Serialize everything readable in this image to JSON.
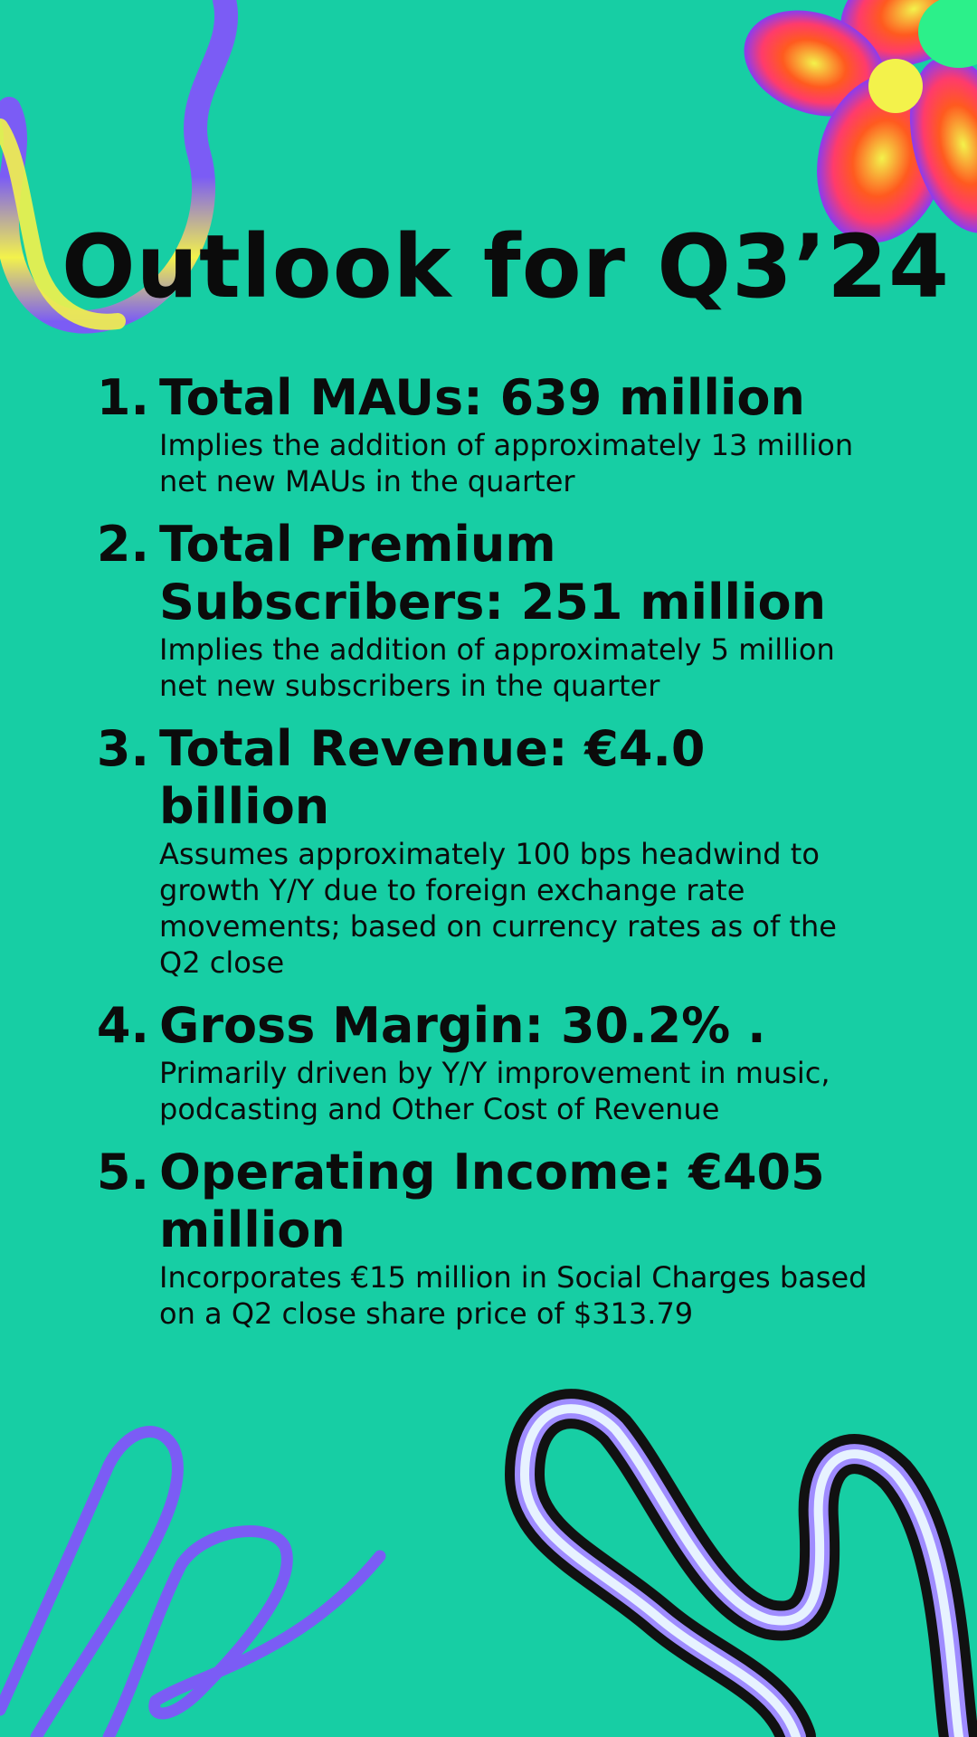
{
  "title": "Outlook for Q3’24",
  "items": [
    {
      "number": "1.",
      "heading": "Total MAUs: 639 million",
      "detail": "Implies the addition of approximately 13 million net new MAUs in the quarter"
    },
    {
      "number": "2.",
      "heading": "Total Premium Subscribers: 251 million",
      "detail": "Implies the addition of approximately 5 million net new subscribers in the quarter"
    },
    {
      "number": "3.",
      "heading": "Total Revenue: €4.0 billion",
      "detail": "Assumes approximately 100 bps headwind to growth Y/Y due to foreign exchange rate movements; based on currency rates as of the Q2 close"
    },
    {
      "number": "4.",
      "heading": "Gross Margin: 30.2% .",
      "detail": "Primarily driven by Y/Y improvement in music, podcasting and Other Cost of Revenue"
    },
    {
      "number": "5.",
      "heading": "Operating Income: €405 million",
      "detail": "Incorporates €15 million in Social Charges based on a Q2 close share price of $313.79"
    }
  ],
  "colors": {
    "background": "#17cea4",
    "text": "#0b0b0b",
    "accent_purple": "#7b5cf5",
    "accent_yellow": "#f3f24b",
    "accent_orange": "#ff5a1f",
    "accent_green": "#2cf08a"
  },
  "decorations": [
    "wavy-ribbon-top-left",
    "gradient-flower-top-right",
    "scribble-bottom-left",
    "squiggle-bottom-right"
  ]
}
